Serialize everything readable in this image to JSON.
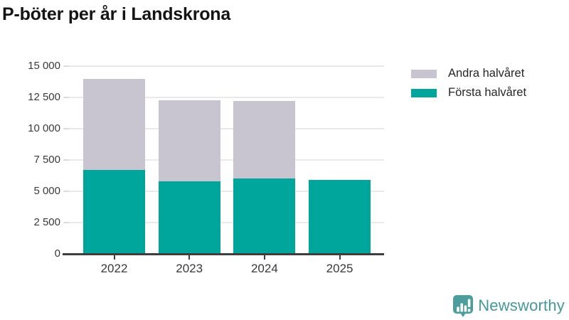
{
  "title": "P-böter per år i Landskrona",
  "legend": {
    "items": [
      {
        "label": "Andra halvåret",
        "color": "#c8c5d0"
      },
      {
        "label": "Första halvåret",
        "color": "#00a59b"
      }
    ]
  },
  "branding": {
    "name": "Newsworthy",
    "text_color": "#45989a",
    "icon_color": "#4b9e9c",
    "icon": "newsworthy-chart-bubble-icon"
  },
  "chart_data": {
    "type": "bar",
    "stacked": true,
    "title": "P-böter per år i Landskrona",
    "categories": [
      "2022",
      "2023",
      "2024",
      "2025"
    ],
    "series": [
      {
        "name": "Första halvåret",
        "color": "#00a59b",
        "values": [
          6700,
          5800,
          6000,
          5900
        ]
      },
      {
        "name": "Andra halvåret",
        "color": "#c8c5d0",
        "values": [
          7300,
          6500,
          6200,
          0
        ]
      }
    ],
    "totals": [
      14000,
      12300,
      12200,
      5900
    ],
    "xlabel": "",
    "ylabel": "",
    "ylim": [
      0,
      15000
    ],
    "yticks": [
      0,
      2500,
      5000,
      7500,
      10000,
      12500,
      15000
    ],
    "ytick_labels": [
      "0",
      "2 500",
      "5 000",
      "7 500",
      "10 000",
      "12 500",
      "15 000"
    ],
    "grid": "horizontal",
    "legend_position": "top-right",
    "legend_order": [
      "Andra halvåret",
      "Första halvåret"
    ]
  }
}
